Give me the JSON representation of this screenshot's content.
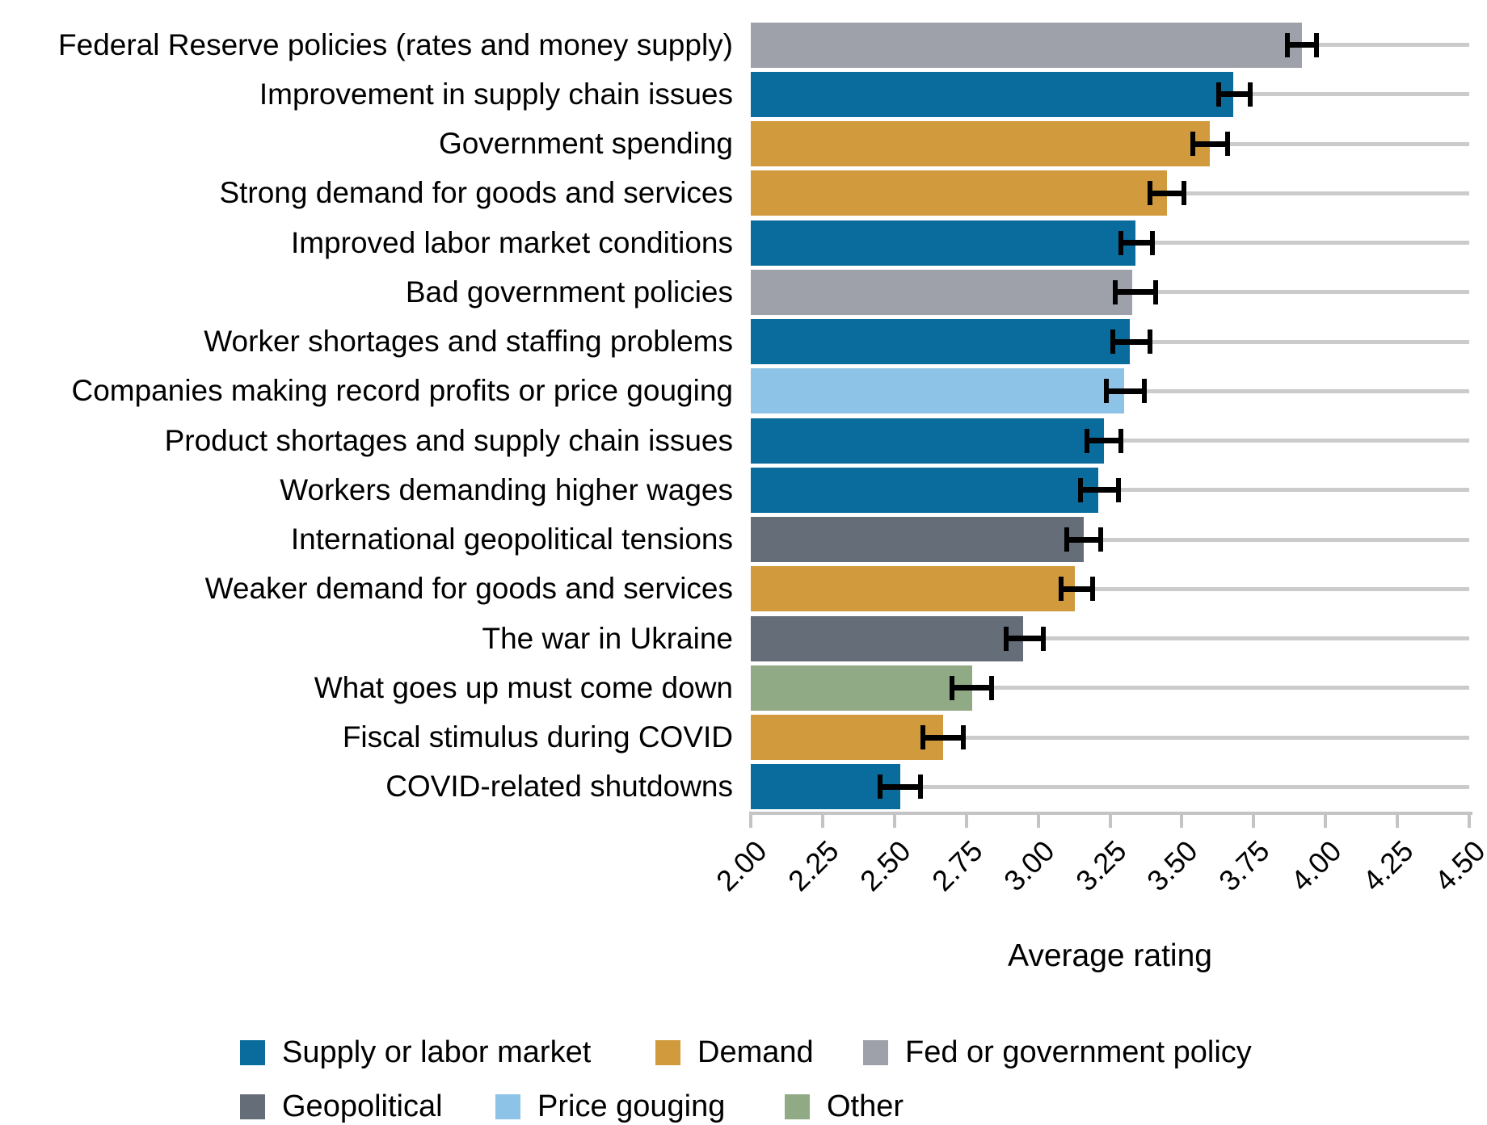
{
  "chart_data": {
    "type": "bar",
    "orientation": "horizontal",
    "xlabel": "Average rating",
    "xlim": [
      2.0,
      4.5
    ],
    "x_ticks": [
      "2.00",
      "2.25",
      "2.50",
      "2.75",
      "3.00",
      "3.25",
      "3.50",
      "3.75",
      "4.00",
      "4.25",
      "4.50"
    ],
    "grid": "row reference lines only",
    "legend_position": "bottom",
    "categories": [
      "Federal Reserve policies (rates and money supply)",
      "Improvement in supply chain issues",
      "Government spending",
      "Strong demand for goods and services",
      "Improved labor market conditions",
      "Bad government policies",
      "Worker shortages and staffing problems",
      "Companies making record profits or price gouging",
      "Product shortages and supply chain issues",
      "Workers demanding higher wages",
      "International geopolitical tensions",
      "Weaker demand for goods and services",
      "The war in Ukraine",
      "What goes up must come down",
      "Fiscal stimulus during COVID",
      "COVID-related shutdowns"
    ],
    "values": [
      3.92,
      3.68,
      3.6,
      3.45,
      3.34,
      3.33,
      3.32,
      3.3,
      3.23,
      3.21,
      3.16,
      3.13,
      2.95,
      2.77,
      2.67,
      2.52
    ],
    "error_low": [
      3.87,
      3.63,
      3.54,
      3.39,
      3.29,
      3.27,
      3.26,
      3.24,
      3.17,
      3.15,
      3.1,
      3.08,
      2.89,
      2.7,
      2.6,
      2.45
    ],
    "error_high": [
      3.97,
      3.74,
      3.66,
      3.51,
      3.4,
      3.41,
      3.39,
      3.37,
      3.29,
      3.28,
      3.22,
      3.19,
      3.02,
      2.84,
      2.74,
      2.59
    ],
    "groups": [
      "fed",
      "supply",
      "demand",
      "demand",
      "supply",
      "fed",
      "supply",
      "gouging",
      "supply",
      "supply",
      "geo",
      "demand",
      "geo",
      "other",
      "demand",
      "supply"
    ],
    "colors": {
      "supply": "#0a6c9d",
      "demand": "#d09a3d",
      "fed": "#9ea1a9",
      "geo": "#656d79",
      "gouging": "#8ec3e8",
      "other": "#90aa85",
      "reference_line": "#cbcbcb",
      "axis": "#c4c4c4",
      "error_bar": "#000000"
    },
    "legend": [
      {
        "id": "supply",
        "label": "Supply or labor market",
        "color": "#0a6c9d"
      },
      {
        "id": "demand",
        "label": "Demand",
        "color": "#d09a3d"
      },
      {
        "id": "fed",
        "label": "Fed or government policy",
        "color": "#9ea1a9"
      },
      {
        "id": "geo",
        "label": "Geopolitical",
        "color": "#656d79"
      },
      {
        "id": "gouging",
        "label": "Price gouging",
        "color": "#8ec3e8"
      },
      {
        "id": "other",
        "label": "Other",
        "color": "#90aa85"
      }
    ]
  }
}
